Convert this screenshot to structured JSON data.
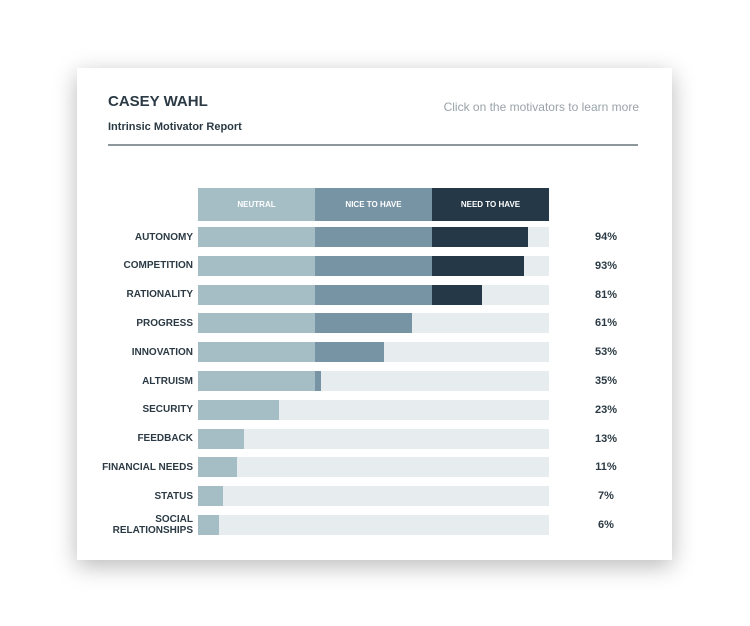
{
  "header": {
    "name": "CASEY WAHL",
    "subtitle": "Intrinsic Motivator Report",
    "hint": "Click on the motivators to learn more"
  },
  "colors": {
    "neutral": "#a5bec6",
    "nice": "#7794a5",
    "need": "#243847",
    "track": "#e7ecef"
  },
  "chart_data": {
    "type": "bar",
    "orientation": "horizontal-stacked",
    "legend": [
      "NEUTRAL",
      "NICE TO HAVE",
      "NEED TO HAVE"
    ],
    "categories": [
      "AUTONOMY",
      "COMPETITION",
      "RATIONALITY",
      "PROGRESS",
      "INNOVATION",
      "ALTRUISM",
      "SECURITY",
      "FEEDBACK",
      "FINANCIAL NEEDS",
      "STATUS",
      "SOCIAL RELATIONSHIPS"
    ],
    "values": [
      94,
      93,
      81,
      61,
      53,
      35,
      23,
      13,
      11,
      7,
      6
    ],
    "labels": [
      "94%",
      "93%",
      "81%",
      "61%",
      "53%",
      "35%",
      "23%",
      "13%",
      "11%",
      "7%",
      "6%"
    ],
    "xlim": [
      0,
      100
    ]
  }
}
